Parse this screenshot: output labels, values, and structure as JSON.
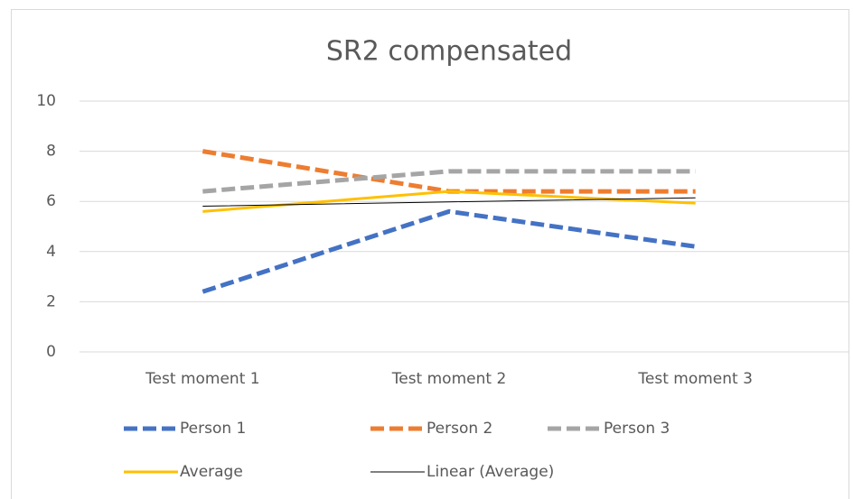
{
  "chart_data": {
    "type": "line",
    "title": "SR2 compensated",
    "categories": [
      "Test moment 1",
      "Test moment 2",
      "Test moment 3"
    ],
    "series": [
      {
        "name": "Person 1",
        "color": "#4472c4",
        "dashed": true,
        "line_width": 5,
        "values": [
          2.4,
          5.6,
          4.2
        ]
      },
      {
        "name": "Person 2",
        "color": "#ed7d31",
        "dashed": true,
        "line_width": 5,
        "values": [
          8,
          6.4,
          6.4
        ]
      },
      {
        "name": "Person 3",
        "color": "#a5a5a5",
        "dashed": true,
        "line_width": 5,
        "values": [
          6.4,
          7.2,
          7.2
        ]
      },
      {
        "name": "Average",
        "color": "#ffc000",
        "dashed": false,
        "line_width": 3,
        "values": [
          5.6,
          6.4,
          5.93
        ]
      },
      {
        "name": "Linear (Average)",
        "color": "#000000",
        "dashed": false,
        "line_width": 1,
        "values": [
          5.81,
          5.98,
          6.14
        ]
      }
    ],
    "ylim": [
      0,
      10
    ],
    "yticks": [
      0,
      2,
      4,
      6,
      8,
      10
    ],
    "grid": true,
    "legend": "bottom"
  }
}
